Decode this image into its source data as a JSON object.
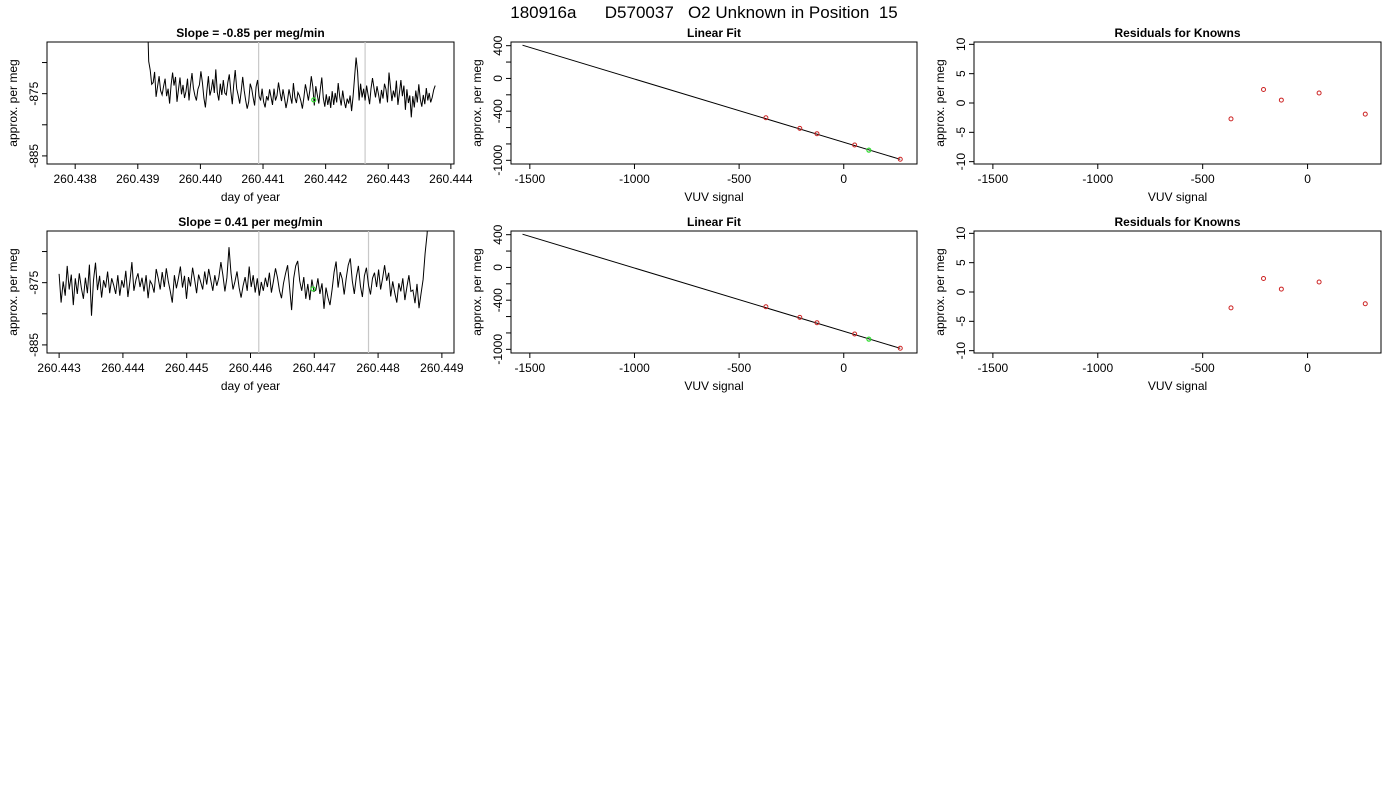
{
  "page_title": "180916a      D570037   O2 Unknown in Position  15",
  "colors": {
    "known_points": "#cc2222",
    "unknown_point": "#33dd33",
    "trace": "#000000",
    "marker_lines": "#c8c8c8"
  },
  "chart_data": [
    {
      "id": "trace1",
      "type": "line",
      "title": "Slope =  -0.85  per meg/min",
      "xlabel": "day of year",
      "ylabel": "approx. per meg",
      "xlim": [
        260.43755,
        260.44405
      ],
      "ylim": [
        -886.3,
        -866.7
      ],
      "xticks": [
        260.438,
        260.439,
        260.44,
        260.441,
        260.442,
        260.443,
        260.444
      ],
      "xtick_labels": [
        "260.438",
        "260.439",
        "260.440",
        "260.441",
        "260.442",
        "260.443",
        "260.444"
      ],
      "yticks": [
        -885,
        -880,
        -875,
        -870
      ],
      "ytick_labels": [
        "-885",
        "",
        "-875",
        ""
      ],
      "x_start": 260.43915,
      "x_end": 260.44375,
      "values": [
        -861,
        -869.8,
        -871.2,
        -873.5,
        -873.2,
        -871.5,
        -875.5,
        -873.8,
        -872.2,
        -874.5,
        -875.2,
        -873.8,
        -872.6,
        -875.4,
        -874.2,
        -876.6,
        -873.6,
        -871.6,
        -873.7,
        -872.3,
        -876.3,
        -874.3,
        -872.4,
        -875.1,
        -873.6,
        -875.7,
        -874.6,
        -872.6,
        -876.1,
        -873.6,
        -871.7,
        -874.1,
        -875.3,
        -876.1,
        -874.3,
        -873.6,
        -871.4,
        -873.2,
        -875.7,
        -877.2,
        -874.5,
        -872.2,
        -875.3,
        -874.3,
        -872.7,
        -874.9,
        -871.1,
        -874.8,
        -876.1,
        -873.4,
        -875.2,
        -872.8,
        -874.9,
        -875.2,
        -873.2,
        -871.9,
        -874.6,
        -876.7,
        -873.6,
        -871.2,
        -874.2,
        -875.3,
        -876.6,
        -874.6,
        -872.3,
        -874.5,
        -876.1,
        -877.4,
        -876.3,
        -873.4,
        -874.2,
        -875.6,
        -876.9,
        -873.9,
        -872.8,
        -875.4,
        -876.1,
        -874.2,
        -876.3,
        -877.2,
        -875.4,
        -876.1,
        -874.3,
        -875.6,
        -876.8,
        -874.2,
        -876.1,
        -875.3,
        -873.2,
        -874.8,
        -876.2,
        -874.3,
        -875.7,
        -877.3,
        -876.1,
        -874.3,
        -875.5,
        -876.6,
        -873.3,
        -875.6,
        -876.5,
        -874.8,
        -875.3,
        -876.2,
        -877.4,
        -875.6,
        -873.5,
        -874.7,
        -876.1,
        -874.4,
        -872.2,
        -873.9,
        -876.9,
        -873.8,
        -875.2,
        -876.6,
        -874.3,
        -872.4,
        -875.7,
        -877.1,
        -875.1,
        -876.8,
        -875.4,
        -877.3,
        -874.6,
        -876.8,
        -874.9,
        -876.4,
        -873.3,
        -875.5,
        -876.9,
        -874.5,
        -876.2,
        -877.3,
        -875.8,
        -876.6,
        -875.3,
        -877.8,
        -875.4,
        -872.3,
        -869.2,
        -871.5,
        -876.1,
        -873.4,
        -875.6,
        -874.2,
        -876.1,
        -873.7,
        -875.2,
        -876.7,
        -874.2,
        -872.5,
        -874.1,
        -875.6,
        -873.8,
        -875.1,
        -876.6,
        -874.4,
        -875.8,
        -873.4,
        -874.3,
        -876.4,
        -871.6,
        -873.8,
        -876.2,
        -874.5,
        -875.6,
        -872.9,
        -876.8,
        -874.9,
        -872.8,
        -875.4,
        -873.7,
        -877.6,
        -874.3,
        -876.5,
        -875.3,
        -878.8,
        -875.4,
        -877.2,
        -874.5,
        -876.4,
        -873.5,
        -875.9,
        -877.1,
        -875.2,
        -876.7,
        -874.1,
        -876.1,
        -874.9,
        -876.4,
        -875.6,
        -874.4,
        -873.7
      ],
      "markers": [
        260.44093,
        260.44263
      ],
      "unknown_point": {
        "x": 260.44181,
        "y": -876
      }
    },
    {
      "id": "fit1",
      "type": "line",
      "title": "Linear Fit",
      "xlabel": "VUV signal",
      "ylabel": "approx. per meg",
      "xlim": [
        -1590,
        350
      ],
      "ylim": [
        -1045,
        445
      ],
      "xticks": [
        -1500,
        -1000,
        -500,
        0
      ],
      "xtick_labels": [
        "-1500",
        "-1000",
        "-500",
        "0"
      ],
      "yticks": [
        -1000,
        -800,
        -600,
        -400,
        -200,
        0,
        200,
        400
      ],
      "ytick_labels": [
        "-1000",
        "",
        "",
        "-400",
        "",
        "0",
        "",
        "400"
      ],
      "fit_line": {
        "x": [
          -1535,
          270
        ],
        "y": [
          406,
          -988
        ]
      },
      "known_points": {
        "x": [
          -372,
          -210,
          -128,
          52,
          270
        ],
        "y": [
          -480,
          -610,
          -675,
          -813,
          -987
        ]
      },
      "unknown_point": {
        "x": 120,
        "y": -876
      }
    },
    {
      "id": "resid1",
      "type": "scatter",
      "title": "Residuals for Knowns",
      "xlabel": "VUV signal",
      "ylabel": "approx. per meg",
      "xlim": [
        -1590,
        350
      ],
      "ylim": [
        -10.4,
        10.4
      ],
      "xticks": [
        -1500,
        -1000,
        -500,
        0
      ],
      "xtick_labels": [
        "-1500",
        "-1000",
        "-500",
        "0"
      ],
      "yticks": [
        -10,
        -5,
        0,
        5,
        10
      ],
      "ytick_labels": [
        "-10",
        "-5",
        "0",
        "5",
        "10"
      ],
      "points": {
        "x": [
          -365,
          -210,
          -125,
          55,
          275
        ],
        "y": [
          -2.7,
          2.3,
          0.5,
          1.7,
          -1.9
        ]
      }
    },
    {
      "id": "trace2",
      "type": "line",
      "title": "Slope =  0.41  per meg/min",
      "xlabel": "day of year",
      "ylabel": "approx. per meg",
      "xlim": [
        260.44281,
        260.44919
      ],
      "ylim": [
        -886.3,
        -866.7
      ],
      "xticks": [
        260.443,
        260.444,
        260.445,
        260.446,
        260.447,
        260.448,
        260.449
      ],
      "xtick_labels": [
        "260.443",
        "260.444",
        "260.445",
        "260.446",
        "260.447",
        "260.448",
        "260.449"
      ],
      "yticks": [
        -885,
        -880,
        -875,
        -870
      ],
      "ytick_labels": [
        "-885",
        "",
        "-875",
        ""
      ],
      "x_start": 260.443,
      "x_end": 260.4488,
      "values": [
        -873.6,
        -878.2,
        -874.8,
        -877.1,
        -872.3,
        -876.1,
        -873.7,
        -878.6,
        -874.3,
        -876.8,
        -873.5,
        -875.9,
        -877.6,
        -874.2,
        -876.7,
        -872.1,
        -880.3,
        -874.6,
        -871.8,
        -876.2,
        -873.9,
        -877.4,
        -874.6,
        -875.8,
        -873.2,
        -876.7,
        -874.3,
        -875.4,
        -876.8,
        -873.8,
        -877.1,
        -874.6,
        -875.8,
        -873.1,
        -877.3,
        -874.8,
        -871.7,
        -876.3,
        -874.5,
        -873.5,
        -875.7,
        -874.2,
        -876.4,
        -873.8,
        -877.5,
        -874.7,
        -875.3,
        -876.6,
        -872.8,
        -874.3,
        -876.1,
        -873.3,
        -875.7,
        -872.7,
        -874.8,
        -876.4,
        -878.2,
        -873.8,
        -875.9,
        -874.3,
        -872.4,
        -875.8,
        -873.9,
        -877.6,
        -874.1,
        -875.6,
        -872.6,
        -874.5,
        -876.7,
        -873.7,
        -874.9,
        -876.1,
        -873.2,
        -875.3,
        -872.8,
        -874.6,
        -876.3,
        -873.8,
        -875.5,
        -874.2,
        -871.7,
        -873.8,
        -876.4,
        -874.2,
        -869.3,
        -873.5,
        -876.1,
        -874.8,
        -873.2,
        -875.8,
        -877.4,
        -875.5,
        -874.1,
        -876.3,
        -872.4,
        -875.7,
        -873.8,
        -876.6,
        -874.3,
        -877.1,
        -874.9,
        -876.3,
        -874.2,
        -875.7,
        -873.4,
        -876.6,
        -874.8,
        -872.7,
        -874.2,
        -876.3,
        -877.5,
        -875.1,
        -873.5,
        -872.2,
        -875.8,
        -879.4,
        -874.3,
        -872.3,
        -871.5,
        -874.7,
        -876.3,
        -874.1,
        -877.6,
        -875.2,
        -877.8,
        -874.5,
        -876.4,
        -876.2,
        -874.3,
        -876.8,
        -875.1,
        -879.2,
        -875.8,
        -877.4,
        -878.6,
        -876.1,
        -873.3,
        -871.6,
        -875.8,
        -873.3,
        -874.4,
        -876.9,
        -874.3,
        -872.2,
        -871.1,
        -874.7,
        -876.8,
        -874.1,
        -872.3,
        -875.5,
        -877.3,
        -873.9,
        -872.6,
        -875.4,
        -876.9,
        -874.3,
        -873.4,
        -875.7,
        -872.9,
        -876.1,
        -874.3,
        -872.2,
        -874.7,
        -873.4,
        -877.2,
        -874.8,
        -876.6,
        -878.2,
        -875.1,
        -876.4,
        -874.3,
        -877.8,
        -875.7,
        -873.8,
        -876.4,
        -876.2,
        -878.3,
        -875.2,
        -879.1,
        -876.8,
        -874.5,
        -870.3,
        -867.2,
        -861.5
      ],
      "markers": [
        260.44613,
        260.44785
      ],
      "unknown_point": {
        "x": 260.44698,
        "y": -876
      }
    },
    {
      "id": "fit2",
      "type": "line",
      "title": "Linear Fit",
      "xlabel": "VUV signal",
      "ylabel": "approx. per meg",
      "xlim": [
        -1590,
        350
      ],
      "ylim": [
        -1045,
        445
      ],
      "xticks": [
        -1500,
        -1000,
        -500,
        0
      ],
      "xtick_labels": [
        "-1500",
        "-1000",
        "-500",
        "0"
      ],
      "yticks": [
        -1000,
        -800,
        -600,
        -400,
        -200,
        0,
        200,
        400
      ],
      "ytick_labels": [
        "-1000",
        "",
        "",
        "-400",
        "",
        "0",
        "",
        "400"
      ],
      "fit_line": {
        "x": [
          -1535,
          270
        ],
        "y": [
          406,
          -988
        ]
      },
      "known_points": {
        "x": [
          -372,
          -210,
          -128,
          52,
          270
        ],
        "y": [
          -480,
          -610,
          -675,
          -813,
          -987
        ]
      },
      "unknown_point": {
        "x": 120,
        "y": -876
      }
    },
    {
      "id": "resid2",
      "type": "scatter",
      "title": "Residuals for Knowns",
      "xlabel": "VUV signal",
      "ylabel": "approx. per meg",
      "xlim": [
        -1590,
        350
      ],
      "ylim": [
        -10.4,
        10.4
      ],
      "xticks": [
        -1500,
        -1000,
        -500,
        0
      ],
      "xtick_labels": [
        "-1500",
        "-1000",
        "-500",
        "0"
      ],
      "yticks": [
        -10,
        -5,
        0,
        5,
        10
      ],
      "ytick_labels": [
        "-10",
        "-5",
        "0",
        "5",
        "10"
      ],
      "points": {
        "x": [
          -365,
          -210,
          -125,
          55,
          275
        ],
        "y": [
          -2.7,
          2.3,
          0.5,
          1.7,
          -2.0
        ]
      }
    }
  ]
}
